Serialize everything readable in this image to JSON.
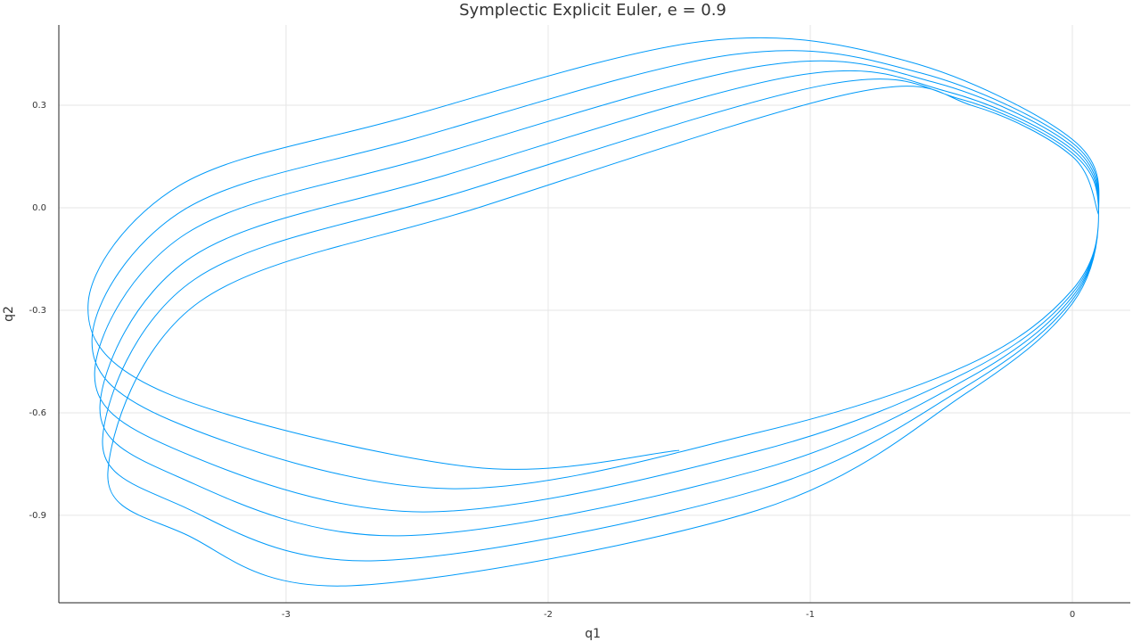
{
  "chart_data": {
    "type": "line",
    "title": "Symplectic Explicit Euler, e = 0.9",
    "xlabel": "q1",
    "ylabel": "q2",
    "xlim": [
      -3.867,
      0.221
    ],
    "ylim": [
      -1.156,
      0.535
    ],
    "xticks": [
      -3,
      -2,
      -1,
      0
    ],
    "yticks": [
      0.3,
      {
        "value": 0,
        "label": "0.0"
      },
      -0.3,
      -0.6,
      -0.9
    ],
    "grid": true,
    "x": [
      0.1,
      0.0,
      -0.374,
      -0.83,
      -2.255,
      -3.33,
      -3.68,
      -3.38,
      -2.75,
      -1.2,
      -0.4,
      0.0,
      0.1,
      0.0,
      -0.423,
      -0.94,
      -2.32,
      -3.35,
      -3.7,
      -3.4,
      -2.66,
      -1.2,
      -0.4,
      0.0,
      0.1,
      0.0,
      -0.477,
      -1.06,
      -2.385,
      -3.36,
      -3.71,
      -3.41,
      -2.57,
      -1.2,
      -0.4,
      0.0,
      0.1,
      0.0,
      -0.527,
      -1.17,
      -2.45,
      -3.38,
      -3.73,
      -3.43,
      -2.48,
      -1.2,
      -0.4,
      0.0,
      0.1,
      0.0,
      -0.581,
      -1.29,
      -2.515,
      -3.39,
      -3.74,
      -3.44,
      -2.38,
      -1.2,
      -0.4,
      0.0,
      0.1,
      0.0,
      -0.63,
      -1.4,
      -2.578,
      -3.405,
      -3.755,
      -3.455,
      -2.29,
      -1.5
    ],
    "series": [
      {
        "color": "#009af9",
        "values": [
          -0.02,
          0.15,
          0.297,
          0.337,
          0.003,
          -0.275,
          -0.775,
          -0.957,
          -1.106,
          -0.885,
          -0.54,
          -0.28,
          -0.02,
          0.16,
          0.317,
          0.36,
          0.049,
          -0.21,
          -0.676,
          -0.872,
          -1.033,
          -0.826,
          -0.52,
          -0.27,
          -0.02,
          0.17,
          0.34,
          0.386,
          0.097,
          -0.144,
          -0.577,
          -0.788,
          -0.96,
          -0.768,
          -0.5,
          -0.26,
          -0.02,
          0.18,
          0.367,
          0.417,
          0.149,
          -0.075,
          -0.477,
          -0.704,
          -0.89,
          -0.712,
          -0.48,
          -0.25,
          -0.02,
          0.19,
          0.395,
          0.449,
          0.201,
          -0.006,
          -0.378,
          -0.622,
          -0.822,
          -0.658,
          -0.46,
          -0.24,
          -0.02,
          0.2,
          0.429,
          0.488,
          0.258,
          0.066,
          -0.279,
          -0.543,
          -0.759,
          -0.71
        ]
      }
    ]
  }
}
